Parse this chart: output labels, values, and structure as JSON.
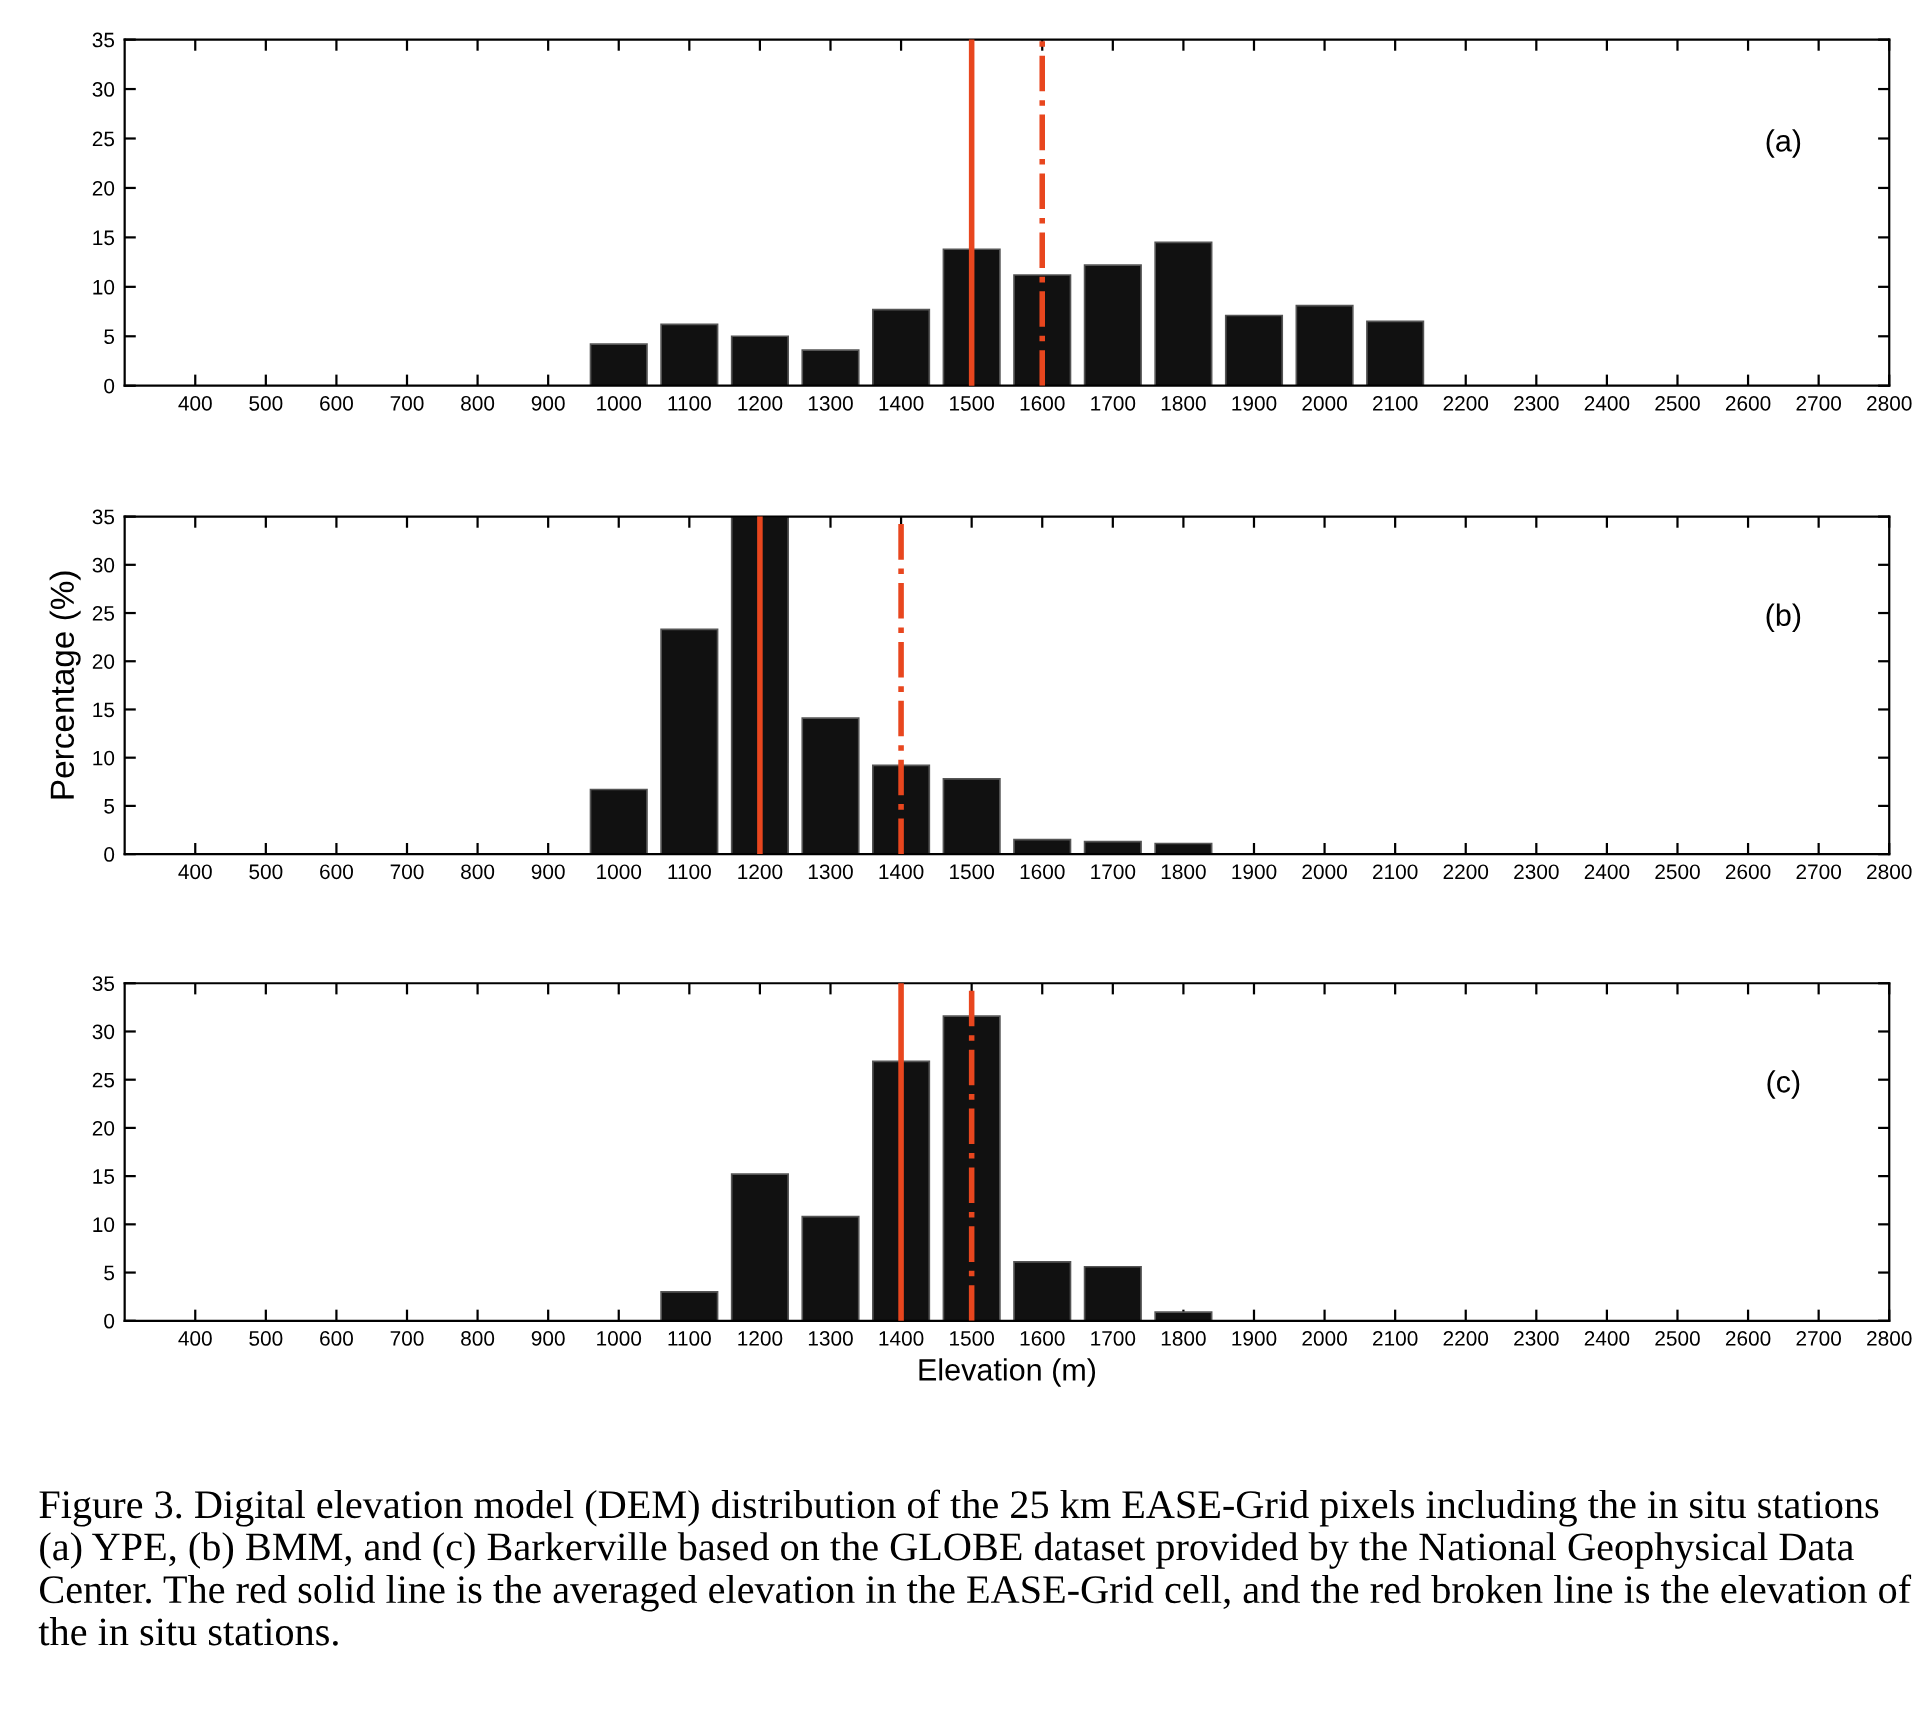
{
  "chart_data": [
    {
      "type": "bar",
      "x": [
        1000,
        1100,
        1200,
        1300,
        1400,
        1500,
        1600,
        1700,
        1800,
        1900,
        2000,
        2100
      ],
      "values": [
        4.2,
        6.2,
        5.0,
        3.6,
        7.7,
        13.8,
        11.2,
        12.2,
        14.5,
        7.1,
        8.1,
        6.5
      ],
      "color": "#111111",
      "xlim": [
        300,
        2800
      ],
      "xticks": [
        400,
        500,
        600,
        700,
        800,
        900,
        1000,
        1100,
        1200,
        1300,
        1400,
        1500,
        1600,
        1700,
        1800,
        1900,
        2000,
        2100,
        2200,
        2300,
        2400,
        2500,
        2600,
        2700,
        2800
      ],
      "ylim": [
        0,
        35
      ],
      "yticks": [
        0,
        5,
        10,
        15,
        20,
        25,
        30,
        35
      ],
      "grid": false,
      "ref_lines": [
        {
          "axis": "x",
          "value": 1500,
          "color": "#e8461e",
          "line_style": "solid"
        },
        {
          "axis": "x",
          "value": 1600,
          "color": "#e8461e",
          "line_style": "dashdot"
        }
      ],
      "annotations": [
        "(a)"
      ]
    },
    {
      "type": "bar",
      "x": [
        1000,
        1100,
        1200,
        1300,
        1400,
        1500,
        1600,
        1700,
        1800
      ],
      "values": [
        6.7,
        23.3,
        35,
        14.1,
        9.2,
        7.8,
        1.5,
        1.3,
        1.1
      ],
      "color": "#111111",
      "xlim": [
        300,
        2800
      ],
      "xticks": [
        400,
        500,
        600,
        700,
        800,
        900,
        1000,
        1100,
        1200,
        1300,
        1400,
        1500,
        1600,
        1700,
        1800,
        1900,
        2000,
        2100,
        2200,
        2300,
        2400,
        2500,
        2600,
        2700,
        2800
      ],
      "ylim": [
        0,
        35
      ],
      "yticks": [
        0,
        5,
        10,
        15,
        20,
        25,
        30,
        35
      ],
      "ylabel": "Percentage (%)",
      "grid": false,
      "ref_lines": [
        {
          "axis": "x",
          "value": 1200,
          "color": "#e8461e",
          "line_style": "solid"
        },
        {
          "axis": "x",
          "value": 1400,
          "color": "#e8461e",
          "line_style": "dashdot"
        }
      ],
      "annotations": [
        "(b)"
      ]
    },
    {
      "type": "bar",
      "x": [
        1100,
        1200,
        1300,
        1400,
        1500,
        1600,
        1700,
        1800
      ],
      "values": [
        3.0,
        15.2,
        10.8,
        26.9,
        31.6,
        6.1,
        5.6,
        0.9
      ],
      "color": "#111111",
      "xlim": [
        300,
        2800
      ],
      "xticks": [
        400,
        500,
        600,
        700,
        800,
        900,
        1000,
        1100,
        1200,
        1300,
        1400,
        1500,
        1600,
        1700,
        1800,
        1900,
        2000,
        2100,
        2200,
        2300,
        2400,
        2500,
        2600,
        2700,
        2800
      ],
      "ylim": [
        0,
        35
      ],
      "yticks": [
        0,
        5,
        10,
        15,
        20,
        25,
        30,
        35
      ],
      "xlabel": "Elevation (m)",
      "grid": false,
      "ref_lines": [
        {
          "axis": "x",
          "value": 1400,
          "color": "#e8461e",
          "line_style": "solid"
        },
        {
          "axis": "x",
          "value": 1500,
          "color": "#e8461e",
          "line_style": "dashdot"
        }
      ],
      "annotations": [
        "(c)",
        "Figure 3. Digital elevation model (DEM) distribution of the 25 km EASE-Grid pixels including the in situ stations (a) YPE, (b) BMM, and (c) Barkerville based on the GLOBE dataset provided by the National Geophysical Data Center. The red solid line is the averaged elevation in the EASE-Grid cell, and the red broken line is the elevation of the in situ stations."
      ]
    }
  ]
}
